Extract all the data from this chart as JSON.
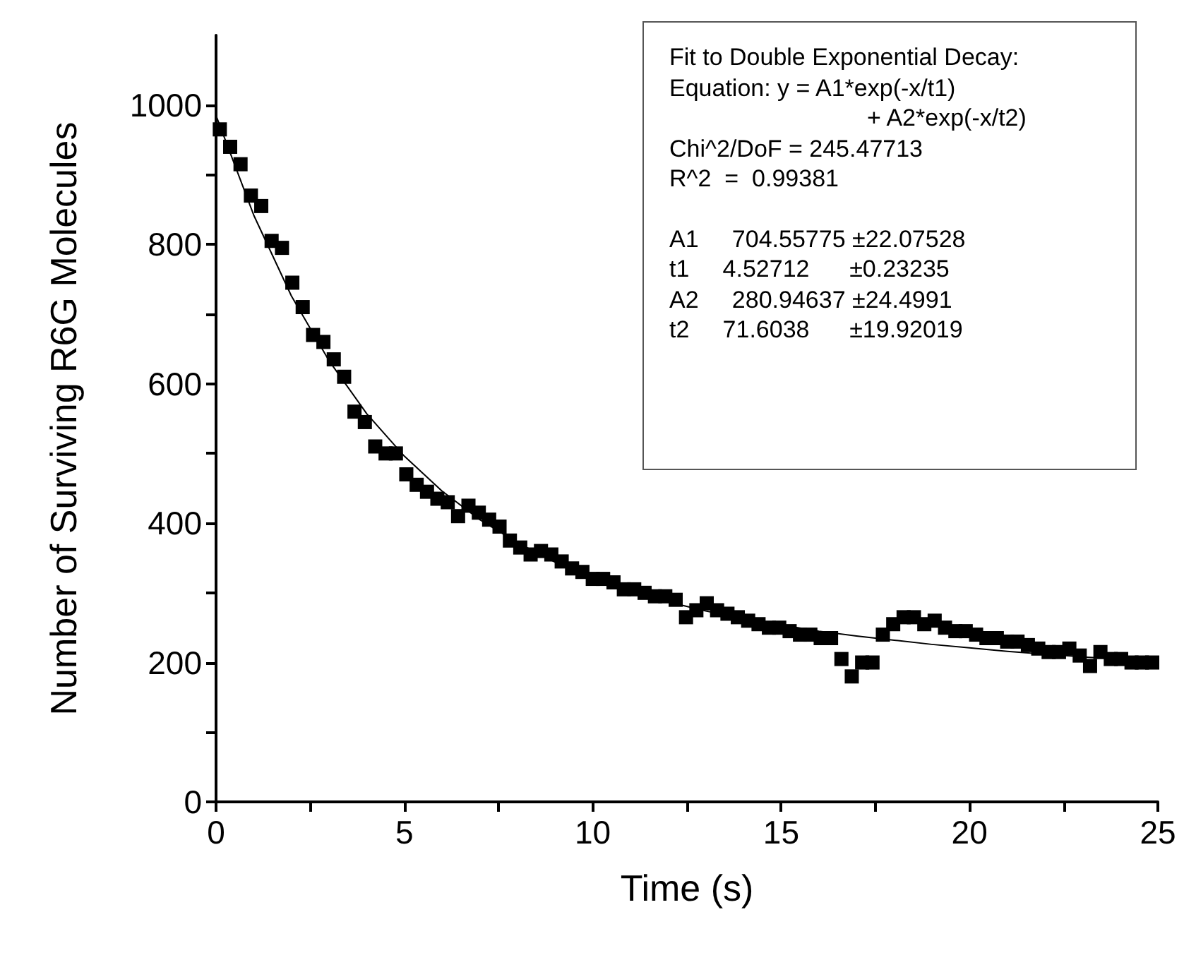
{
  "chart_data": {
    "type": "scatter",
    "xlabel": "Time (s)",
    "ylabel": "Number of Surviving R6G Molecules",
    "xlim": [
      0,
      25
    ],
    "xticks": [
      0,
      {
        "value": 2.5,
        "label": null
      },
      5,
      {
        "value": 7.5,
        "label": null
      },
      10,
      {
        "value": 12.5,
        "label": null
      },
      15,
      {
        "value": 17.5,
        "label": null
      },
      20,
      {
        "value": 22.5,
        "label": null
      },
      25
    ],
    "ylim": [
      0,
      1100
    ],
    "yticks": [
      0,
      {
        "value": 100,
        "label": null
      },
      200,
      {
        "value": 300,
        "label": null
      },
      400,
      {
        "value": 500,
        "label": null
      },
      600,
      {
        "value": 700,
        "label": null
      },
      800,
      {
        "value": 900,
        "label": null
      },
      1000
    ],
    "grid": false,
    "marker": "square",
    "series": [
      {
        "color": "#000000",
        "x": [
          0.1,
          0.375,
          0.65,
          0.925,
          1.2,
          1.475,
          1.75,
          2.025,
          2.3,
          2.575,
          2.85,
          3.125,
          3.4,
          3.675,
          3.95,
          4.225,
          4.5,
          4.775,
          5.05,
          5.325,
          5.6,
          5.875,
          6.15,
          6.425,
          6.7,
          6.975,
          7.25,
          7.525,
          7.8,
          8.075,
          8.35,
          8.625,
          8.9,
          9.175,
          9.45,
          9.725,
          10.0,
          10.275,
          10.55,
          10.825,
          11.1,
          11.375,
          11.65,
          11.925,
          12.2,
          12.475,
          12.75,
          13.025,
          13.3,
          13.575,
          13.85,
          14.125,
          14.4,
          14.675,
          14.95,
          15.225,
          15.5,
          15.775,
          16.05,
          16.325,
          16.6,
          16.875,
          17.15,
          17.425,
          17.7,
          17.975,
          18.25,
          18.525,
          18.8,
          19.075,
          19.35,
          19.625,
          19.9,
          20.175,
          20.45,
          20.725,
          21.0,
          21.275,
          21.55,
          21.825,
          22.1,
          22.375,
          22.65,
          22.925,
          23.2,
          23.475,
          23.75,
          24.025,
          24.3,
          24.575,
          24.85
        ],
        "values": [
          965,
          940,
          915,
          870,
          855,
          805,
          795,
          745,
          710,
          670,
          660,
          635,
          610,
          560,
          545,
          510,
          500,
          500,
          470,
          455,
          445,
          435,
          430,
          410,
          425,
          415,
          405,
          395,
          375,
          365,
          355,
          360,
          355,
          345,
          335,
          330,
          320,
          320,
          315,
          305,
          305,
          300,
          295,
          295,
          290,
          265,
          275,
          285,
          275,
          270,
          265,
          260,
          255,
          250,
          250,
          245,
          240,
          240,
          235,
          235,
          205,
          180,
          200,
          200,
          240,
          255,
          265,
          265,
          255,
          260,
          250,
          245,
          245,
          240,
          235,
          235,
          230,
          230,
          225,
          220,
          215,
          215,
          220,
          210,
          195,
          215,
          205,
          205,
          200,
          200,
          200
        ]
      },
      {
        "type": "line",
        "color": "#000000",
        "marker": "none",
        "line_style": "solid",
        "x": [
          0,
          1,
          2,
          3,
          4,
          5,
          6,
          7,
          8,
          9,
          10,
          11,
          12,
          13,
          14,
          15,
          16,
          17,
          18,
          19,
          20,
          21,
          22,
          23,
          24,
          25
        ],
        "values": [
          985,
          842,
          726,
          633,
          557,
          496,
          446,
          405,
          372,
          344,
          322,
          303,
          287,
          274,
          263,
          254,
          245,
          238,
          232,
          226,
          221,
          216,
          212,
          208,
          205,
          201
        ]
      }
    ],
    "annotations": [
      "Fit to Double Exponential Decay:",
      "Equation: y = A1*exp(-x/t1)",
      "+ A2*exp(-x/t2)",
      "Chi^2/DoF = 245.47713",
      "R^2  =  0.99381",
      "A1     704.55775 ±22.07528",
      "t1     4.52712      ±0.23235",
      "A2     280.94637 ±24.4991",
      "t2     71.6038      ±19.92019"
    ]
  }
}
